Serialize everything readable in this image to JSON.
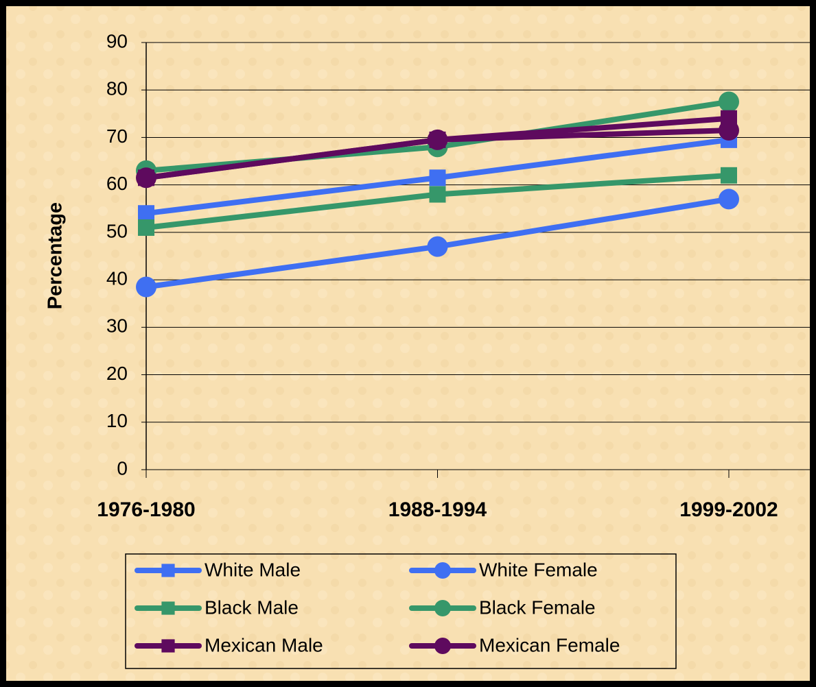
{
  "chart_data": {
    "type": "line",
    "y_label": "Percentage",
    "categories": [
      "1976-1980",
      "1988-1994",
      "1999-2002"
    ],
    "series": [
      {
        "name": "White Male",
        "color": "#3f6ff2",
        "marker": "square",
        "values": [
          54,
          61.5,
          69.5
        ]
      },
      {
        "name": "White Female",
        "color": "#3f6ff2",
        "marker": "circle",
        "values": [
          38.5,
          47,
          57
        ]
      },
      {
        "name": "Black Male",
        "color": "#36976a",
        "marker": "square",
        "values": [
          51,
          58,
          62
        ]
      },
      {
        "name": "Black Female",
        "color": "#36976a",
        "marker": "circle",
        "values": [
          63,
          68,
          77.5
        ]
      },
      {
        "name": "Mexican Male",
        "color": "#5e0a5e",
        "marker": "square",
        "values": [
          61.5,
          69.5,
          74
        ]
      },
      {
        "name": "Mexican Female",
        "color": "#5e0a5e",
        "marker": "circle",
        "values": [
          61.5,
          69.5,
          71.5
        ]
      }
    ],
    "ylim": [
      0,
      90
    ],
    "yticks": [
      0,
      10,
      20,
      30,
      40,
      50,
      60,
      70,
      80,
      90
    ],
    "grid": true,
    "legend": "bottom"
  }
}
